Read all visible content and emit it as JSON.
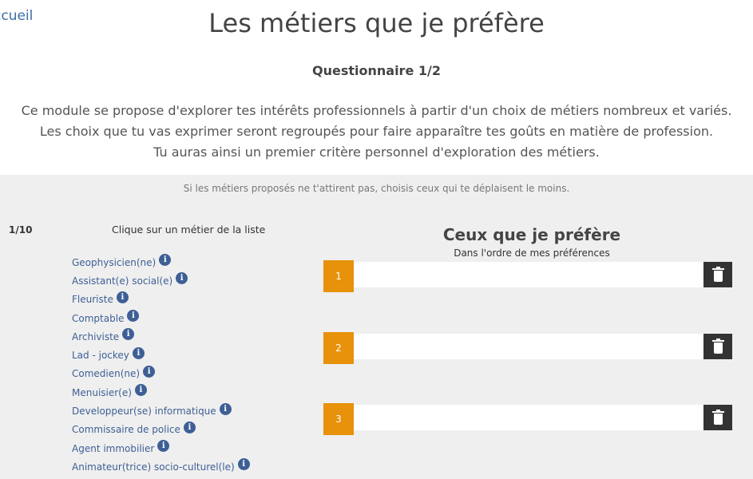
{
  "nav": {
    "home_link": "ccueil"
  },
  "header": {
    "title": "Les métiers que je préfère",
    "subtitle": "Questionnaire 1/2",
    "intro_lines": [
      "Ce module se propose d'explorer tes intérêts professionnels à partir d'un choix de métiers nombreux et variés.",
      "Les choix que tu vas exprimer seront regroupés pour faire apparaître tes goûts en matière de profession.",
      "Tu auras ainsi un premier critère personnel d'exploration des métiers."
    ]
  },
  "panel": {
    "hint": "Si les métiers proposés ne t'attirent pas, choisis ceux qui te déplaisent le moins.",
    "counter": "1/10",
    "instruction": "Clique sur un métier de la liste",
    "jobs": [
      "Geophysicien(ne)",
      "Assistant(e) social(e)",
      "Fleuriste",
      "Comptable",
      "Archiviste",
      "Lad - jockey",
      "Comedien(ne)",
      "Menuisier(e)",
      "Developpeur(se) informatique",
      "Commissaire de police",
      "Agent immobilier",
      "Animateur(trice) socio-culturel(le)"
    ],
    "info_glyph": "i",
    "preferences": {
      "title": "Ceux que je préfère",
      "subtitle": "Dans l'ordre de mes préférences",
      "slots": [
        "1",
        "2",
        "3"
      ],
      "slot_color": "#e8910a",
      "trash_icon": "trash-icon"
    }
  }
}
